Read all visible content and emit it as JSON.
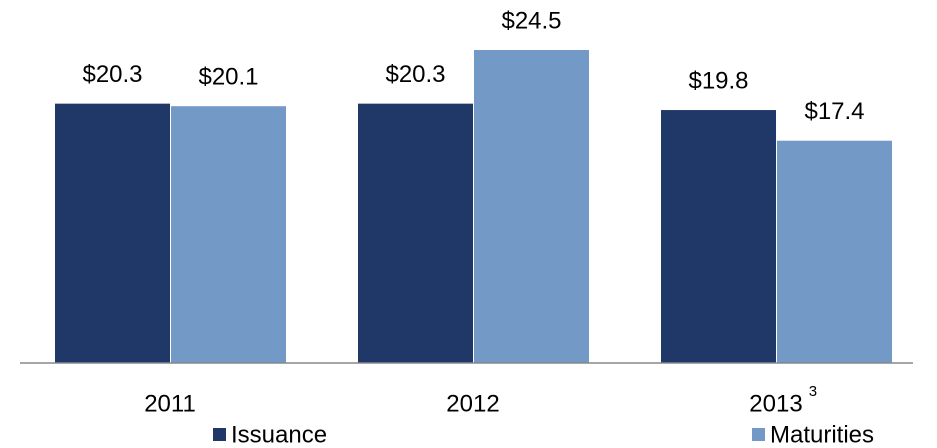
{
  "chart_data": {
    "type": "bar",
    "categories": [
      "2011",
      "2012",
      "2013"
    ],
    "category_footnotes": [
      null,
      null,
      "3"
    ],
    "series": [
      {
        "name": "Issuance",
        "color": "#203868",
        "values": [
          20.3,
          20.3,
          19.8
        ],
        "value_labels": [
          "$20.3",
          "$20.3",
          "$19.8"
        ]
      },
      {
        "name": "Maturities",
        "color": "#7399c6",
        "values": [
          20.1,
          24.5,
          17.4
        ],
        "value_labels": [
          "$20.1",
          "$24.5",
          "$17.4"
        ]
      }
    ],
    "ylim": [
      0,
      24.5
    ],
    "grid": false
  }
}
